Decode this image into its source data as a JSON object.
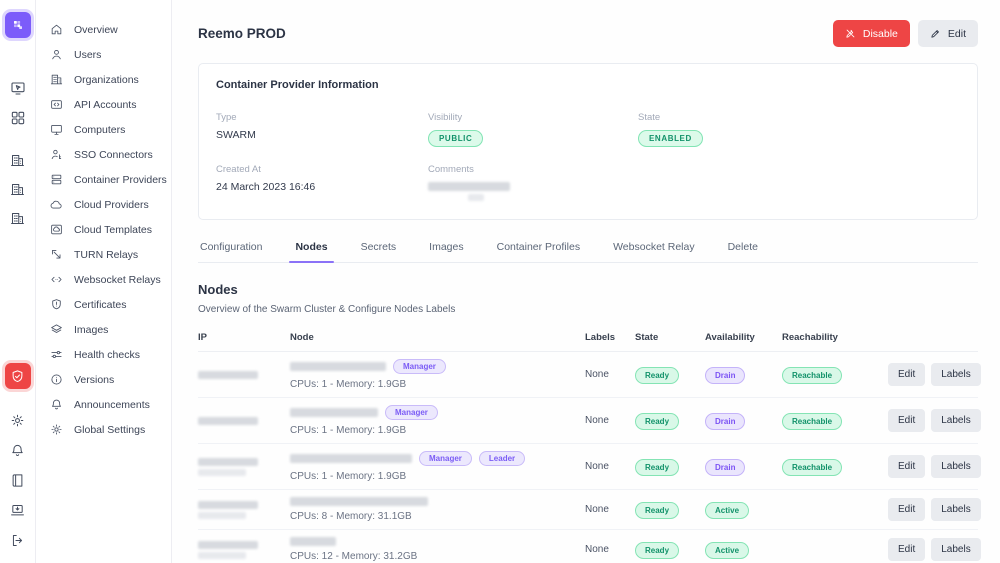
{
  "colors": {
    "accent_purple": "#7c5cfa",
    "accent_red": "#ee4545",
    "badge_green_text": "#12926a",
    "badge_purple_text": "#7b52f4"
  },
  "iconbar": {
    "top_items": [
      {
        "icon": "screen-cursor-icon"
      },
      {
        "icon": "apps-grid-icon"
      }
    ],
    "org_items": [
      {
        "icon": "organization-icon"
      },
      {
        "icon": "organization-icon"
      },
      {
        "icon": "organization-icon"
      }
    ],
    "bottom_items": [
      {
        "icon": "gear-icon"
      },
      {
        "icon": "bell-icon"
      },
      {
        "icon": "book-icon"
      },
      {
        "icon": "laptop-download-icon"
      },
      {
        "icon": "logout-icon"
      }
    ],
    "active_item_icon": "shield-check-icon"
  },
  "sidebar": {
    "items": [
      {
        "label": "Overview",
        "icon": "home"
      },
      {
        "label": "Users",
        "icon": "user"
      },
      {
        "label": "Organizations",
        "icon": "building"
      },
      {
        "label": "API Accounts",
        "icon": "api"
      },
      {
        "label": "Computers",
        "icon": "monitor"
      },
      {
        "label": "SSO Connectors",
        "icon": "sso"
      },
      {
        "label": "Container Providers",
        "icon": "servers"
      },
      {
        "label": "Cloud Providers",
        "icon": "cloud"
      },
      {
        "label": "Cloud Templates",
        "icon": "cloudbox"
      },
      {
        "label": "TURN Relays",
        "icon": "turn"
      },
      {
        "label": "Websocket Relays",
        "icon": "websocket"
      },
      {
        "label": "Certificates",
        "icon": "shieldcert"
      },
      {
        "label": "Images",
        "icon": "layers"
      },
      {
        "label": "Health checks",
        "icon": "health"
      },
      {
        "label": "Versions",
        "icon": "info"
      },
      {
        "label": "Announcements",
        "icon": "bell"
      },
      {
        "label": "Global Settings",
        "icon": "gear"
      }
    ]
  },
  "header": {
    "title": "Reemo PROD",
    "disable_label": "Disable",
    "edit_label": "Edit"
  },
  "info_card": {
    "title": "Container Provider Information",
    "fields": [
      {
        "label": "Type",
        "value": "SWARM",
        "kind": "text"
      },
      {
        "label": "Visibility",
        "value": "PUBLIC",
        "kind": "badge"
      },
      {
        "label": "State",
        "value": "ENABLED",
        "kind": "badge"
      },
      {
        "label": "Created At",
        "value": "24 March 2023 16:46",
        "kind": "text"
      },
      {
        "label": "Comments",
        "value": "",
        "kind": "redacted"
      }
    ]
  },
  "tabs": {
    "items": [
      "Configuration",
      "Nodes",
      "Secrets",
      "Images",
      "Container Profiles",
      "Websocket Relay",
      "Delete"
    ],
    "active": "Nodes"
  },
  "nodes_section": {
    "title": "Nodes",
    "subtitle": "Overview of the Swarm Cluster & Configure Nodes Labels"
  },
  "table": {
    "columns": [
      "IP",
      "Node",
      "Labels",
      "State",
      "Availability",
      "Reachability"
    ],
    "action_labels": [
      "Edit",
      "Labels"
    ],
    "rows": [
      {
        "ip_redacted": true,
        "ip_lines": 1,
        "node_redacted": true,
        "node_blur_w": 96,
        "roles": [
          "Manager"
        ],
        "specs": "CPUs: 1 - Memory: 1.9GB",
        "labels": "None",
        "state": "Ready",
        "availability": "Drain",
        "availability_variant": "purple",
        "reachability": "Reachable"
      },
      {
        "ip_redacted": true,
        "ip_lines": 1,
        "node_redacted": true,
        "node_blur_w": 88,
        "roles": [
          "Manager"
        ],
        "specs": "CPUs: 1 - Memory: 1.9GB",
        "labels": "None",
        "state": "Ready",
        "availability": "Drain",
        "availability_variant": "purple",
        "reachability": "Reachable"
      },
      {
        "ip_redacted": true,
        "ip_lines": 2,
        "node_redacted": true,
        "node_blur_w": 122,
        "roles": [
          "Manager",
          "Leader"
        ],
        "specs": "CPUs: 1 - Memory: 1.9GB",
        "labels": "None",
        "state": "Ready",
        "availability": "Drain",
        "availability_variant": "purple",
        "reachability": "Reachable"
      },
      {
        "ip_redacted": true,
        "ip_lines": 2,
        "node_redacted": true,
        "node_blur_w": 138,
        "roles": [],
        "specs": "CPUs: 8 - Memory: 31.1GB",
        "labels": "None",
        "state": "Ready",
        "availability": "Active",
        "availability_variant": "green",
        "reachability": ""
      },
      {
        "ip_redacted": true,
        "ip_lines": 2,
        "node_redacted": true,
        "node_blur_w": 46,
        "roles": [],
        "specs": "CPUs: 12 - Memory: 31.2GB",
        "labels": "None",
        "state": "Ready",
        "availability": "Active",
        "availability_variant": "green",
        "reachability": ""
      }
    ]
  }
}
